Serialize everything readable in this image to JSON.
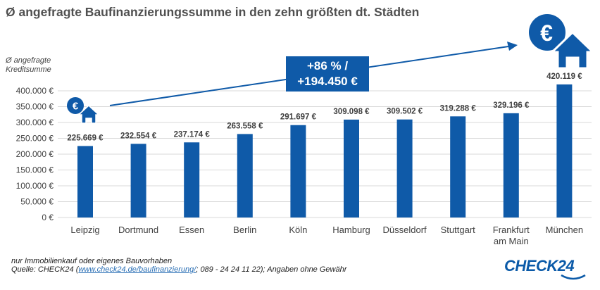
{
  "header": {
    "title": "Ø angefragte Baufinanzierungssumme in den zehn größten dt. Städten",
    "y_axis_label_line1": "Ø angefragte",
    "y_axis_label_line2": "Kreditsumme"
  },
  "callout": {
    "line1": "+86 % /",
    "line2": "+194.450 €"
  },
  "footer": {
    "note": "nur Immobilienkauf oder eigenes Bauvorhaben",
    "source_prefix": "Quelle: CHECK24 (",
    "source_link": "www.check24.de/baufinanzierung/",
    "source_suffix": "; 089 - 24 24 11 22); Angaben ohne Gewähr",
    "logo": "CHECK24"
  },
  "icons": {
    "small": "euro-house-icon",
    "large": "euro-house-icon"
  },
  "colors": {
    "bar": "#0f5aa8",
    "grid": "#d9d9d9",
    "text": "#404040"
  },
  "chart_data": {
    "type": "bar",
    "title": "Ø angefragte Baufinanzierungssumme in den zehn größten dt. Städten",
    "xlabel": "",
    "ylabel": "Ø angefragte Kreditsumme",
    "ylim": [
      0,
      400000
    ],
    "grid": true,
    "yticks": [
      0,
      50000,
      100000,
      150000,
      200000,
      250000,
      300000,
      350000,
      400000
    ],
    "ytick_labels": [
      "0 €",
      "50.000 €",
      "100.000 €",
      "150.000 €",
      "200.000 €",
      "250.000 €",
      "300.000 €",
      "350.000 €",
      "400.000 €"
    ],
    "categories": [
      "Leipzig",
      "Dortmund",
      "Essen",
      "Berlin",
      "Köln",
      "Hamburg",
      "Düsseldorf",
      "Stuttgart",
      "Frankfurt am Main",
      "München"
    ],
    "category_lines": [
      [
        "Leipzig"
      ],
      [
        "Dortmund"
      ],
      [
        "Essen"
      ],
      [
        "Berlin"
      ],
      [
        "Köln"
      ],
      [
        "Hamburg"
      ],
      [
        "Düsseldorf"
      ],
      [
        "Stuttgart"
      ],
      [
        "Frankfurt",
        "am Main"
      ],
      [
        "München"
      ]
    ],
    "values": [
      225669,
      232554,
      237174,
      263558,
      291697,
      309098,
      309502,
      319288,
      329196,
      420119
    ],
    "value_labels": [
      "225.669 €",
      "232.554 €",
      "237.174 €",
      "263.558 €",
      "291.697 €",
      "309.098 €",
      "309.502 €",
      "319.288 €",
      "329.196 €",
      "420.119 €"
    ],
    "annotations": [
      "+86 % / +194.450 €"
    ]
  }
}
